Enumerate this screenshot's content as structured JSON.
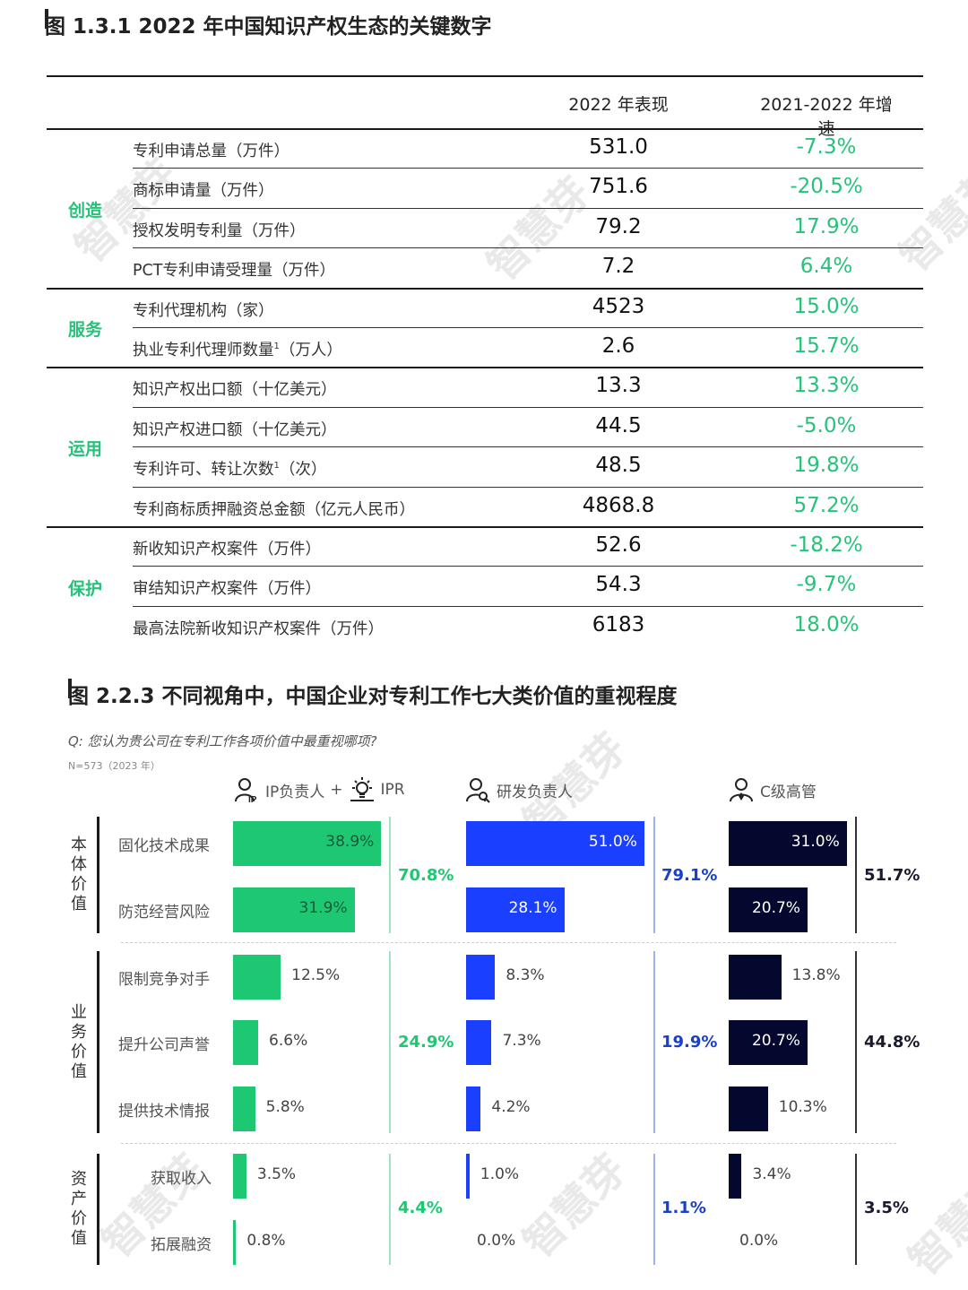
{
  "fig1": {
    "title": "图 1.3.1 2022 年中国知识产权生态的关键数字",
    "col_2022": "2022 年表现",
    "col_growth": "2021-2022 年增速",
    "groups": [
      {
        "name": "创造",
        "rows": [
          {
            "label": "专利申请总量（万件）",
            "sup": "",
            "value": "531.0",
            "growth": "-7.3%"
          },
          {
            "label": "商标申请量（万件）",
            "sup": "",
            "value": "751.6",
            "growth": "-20.5%"
          },
          {
            "label": "授权发明专利量（万件）",
            "sup": "",
            "value": "79.2",
            "growth": "17.9%"
          },
          {
            "label": "PCT专利申请受理量（万件）",
            "sup": "",
            "value": "7.2",
            "growth": "6.4%"
          }
        ]
      },
      {
        "name": "服务",
        "rows": [
          {
            "label": "专利代理机构（家）",
            "sup": "",
            "value": "4523",
            "growth": "15.0%"
          },
          {
            "label": "执业专利代理师数量",
            "sup": "1",
            "label_suffix": "（万人）",
            "value": "2.6",
            "growth": "15.7%"
          }
        ]
      },
      {
        "name": "运用",
        "rows": [
          {
            "label": "知识产权出口额（十亿美元）",
            "sup": "",
            "value": "13.3",
            "growth": "13.3%"
          },
          {
            "label": "知识产权进口额（十亿美元）",
            "sup": "",
            "value": "44.5",
            "growth": "-5.0%"
          },
          {
            "label": "专利许可、转让次数",
            "sup": "1",
            "label_suffix": "（次）",
            "value": "48.5",
            "growth": "19.8%"
          },
          {
            "label": "专利商标质押融资总金额（亿元人民币）",
            "sup": "",
            "value": "4868.8",
            "growth": "57.2%"
          }
        ]
      },
      {
        "name": "保护",
        "rows": [
          {
            "label": "新收知识产权案件（万件）",
            "sup": "",
            "value": "52.6",
            "growth": "-18.2%"
          },
          {
            "label": "审结知识产权案件（万件）",
            "sup": "",
            "value": "54.3",
            "growth": "-9.7%"
          },
          {
            "label": "最高法院新收知识产权案件（万件）",
            "sup": "",
            "value": "6183",
            "growth": "18.0%"
          }
        ]
      }
    ]
  },
  "fig2": {
    "title": "图 2.2.3 不同视角中，中国企业对专利工作七大类价值的重视程度",
    "question": "Q: 您认为贵公司在专利工作各项价值中最重视哪项?",
    "note": "N=573（2023 年）",
    "groups": [
      {
        "label": "IP负责人",
        "plus": "+",
        "label2": "IPR",
        "icon": "ip-person-icon",
        "icon2": "lightbulb-icon"
      },
      {
        "label": "研发负责人",
        "icon": "rd-person-icon"
      },
      {
        "label": "C级高管",
        "icon": "executive-icon"
      }
    ],
    "watermark": "智慧芽"
  },
  "chart_data": {
    "type": "bar",
    "title": "图 2.2.3 不同视角中，中国企业对专利工作七大类价值的重视程度",
    "categories": [
      "固化技术成果",
      "防范经营风险",
      "限制竞争对手",
      "提升公司声誉",
      "提供技术情报",
      "获取收入",
      "拓展融资"
    ],
    "category_groups": [
      {
        "name": "本体价值",
        "items": [
          "固化技术成果",
          "防范经营风险"
        ]
      },
      {
        "name": "业务价值",
        "items": [
          "限制竞争对手",
          "提升公司声誉",
          "提供技术情报"
        ]
      },
      {
        "name": "资产价值",
        "items": [
          "获取收入",
          "拓展融资"
        ]
      }
    ],
    "series": [
      {
        "name": "IP负责人 + IPR",
        "color": "#1ec872",
        "values": [
          38.9,
          31.9,
          12.5,
          6.6,
          5.8,
          3.5,
          0.8
        ],
        "group_totals": [
          "70.8%",
          "24.9%",
          "4.4%"
        ],
        "total_color": "#1ec872"
      },
      {
        "name": "研发负责人",
        "color": "#1a3fff",
        "values": [
          51.0,
          28.1,
          8.3,
          7.3,
          4.2,
          1.0,
          0.0
        ],
        "group_totals": [
          "79.1%",
          "19.9%",
          "1.1%"
        ],
        "total_color": "#1a3fc8"
      },
      {
        "name": "C级高管",
        "color": "#05082e",
        "values": [
          31.0,
          20.7,
          13.8,
          20.7,
          10.3,
          3.4,
          0.0
        ],
        "group_totals": [
          "51.7%",
          "44.8%",
          "3.5%"
        ],
        "total_color": "#1a1a2e"
      }
    ],
    "value_format": "percent_1dp"
  }
}
